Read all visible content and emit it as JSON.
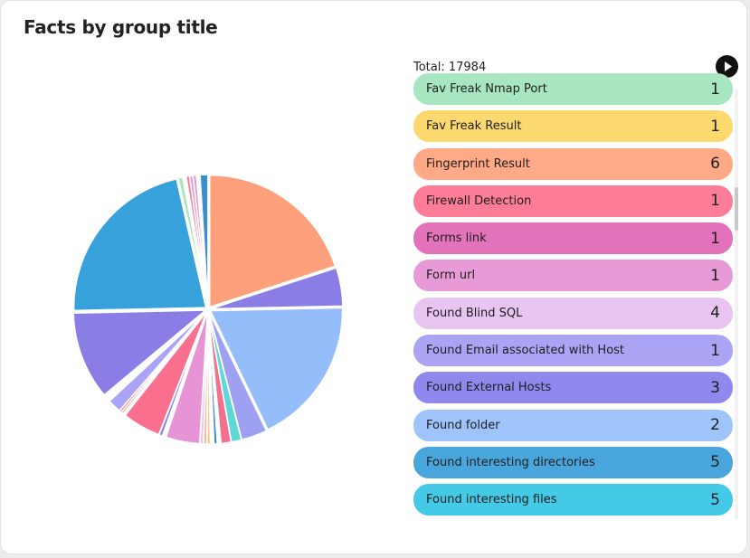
{
  "card": {
    "title": "Facts by group title"
  },
  "legend": {
    "total_label": "Total: 17984",
    "items": [
      {
        "label": "Fav Freak Nmap Port",
        "count": "1",
        "color": "#a8e6c2"
      },
      {
        "label": "Fav Freak Result",
        "count": "1",
        "color": "#fcd96e"
      },
      {
        "label": "Fingerprint Result",
        "count": "6",
        "color": "#ffa987"
      },
      {
        "label": "Firewall Detection",
        "count": "1",
        "color": "#fd7d98"
      },
      {
        "label": "Forms link",
        "count": "1",
        "color": "#e272b9"
      },
      {
        "label": "Form url",
        "count": "1",
        "color": "#e89ad6"
      },
      {
        "label": "Found Blind SQL",
        "count": "4",
        "color": "#e8c4f0"
      },
      {
        "label": "Found Email associated with Host",
        "count": "1",
        "color": "#aba3f4"
      },
      {
        "label": "Found External Hosts",
        "count": "3",
        "color": "#8f89ee"
      },
      {
        "label": "Found folder",
        "count": "2",
        "color": "#9fc3fb"
      },
      {
        "label": "Found interesting directories",
        "count": "5",
        "color": "#48a6dc"
      },
      {
        "label": "Found interesting files",
        "count": "5",
        "color": "#44c9e6"
      }
    ]
  },
  "chart_data": {
    "type": "pie",
    "title": "Facts by group title",
    "slices": [
      {
        "value": 14.5,
        "color": "#ffa07c"
      },
      {
        "value": 3.4,
        "color": "#8a7ee6"
      },
      {
        "value": 13.2,
        "color": "#95bdfa"
      },
      {
        "value": 2.3,
        "color": "#9ea0f2"
      },
      {
        "value": 0.9,
        "color": "#5ed8d4"
      },
      {
        "value": 0.9,
        "color": "#f2718f"
      },
      {
        "value": 0.3,
        "color": "#ffffff"
      },
      {
        "value": 0.3,
        "color": "#3b8fd1"
      },
      {
        "value": 0.3,
        "color": "#ffffff"
      },
      {
        "value": 0.3,
        "color": "#f7c98e"
      },
      {
        "value": 0.3,
        "color": "#ffb8a0"
      },
      {
        "value": 0.3,
        "color": "#e8c4f0"
      },
      {
        "value": 3.0,
        "color": "#e694d6"
      },
      {
        "value": 0.3,
        "color": "#ffffff"
      },
      {
        "value": 0.3,
        "color": "#8a7ee6"
      },
      {
        "value": 3.4,
        "color": "#fb6f8e"
      },
      {
        "value": 0.2,
        "color": "#ffffff"
      },
      {
        "value": 0.2,
        "color": "#ff9a7a"
      },
      {
        "value": 0.2,
        "color": "#f2718f"
      },
      {
        "value": 1.2,
        "color": "#a9a4f5"
      },
      {
        "value": 0.6,
        "color": "#ffffff"
      },
      {
        "value": 7.8,
        "color": "#8a7ee6"
      },
      {
        "value": 15.8,
        "color": "#36a1da"
      },
      {
        "value": 0.4,
        "color": "#a8e6c2"
      },
      {
        "value": 0.3,
        "color": "#ffffff"
      },
      {
        "value": 0.3,
        "color": "#fd7d98"
      },
      {
        "value": 0.3,
        "color": "#e8a2cf"
      },
      {
        "value": 0.3,
        "color": "#e89ad6"
      },
      {
        "value": 0.3,
        "color": "#ffffff"
      },
      {
        "value": 0.7,
        "color": "#3b8fd1"
      }
    ]
  }
}
